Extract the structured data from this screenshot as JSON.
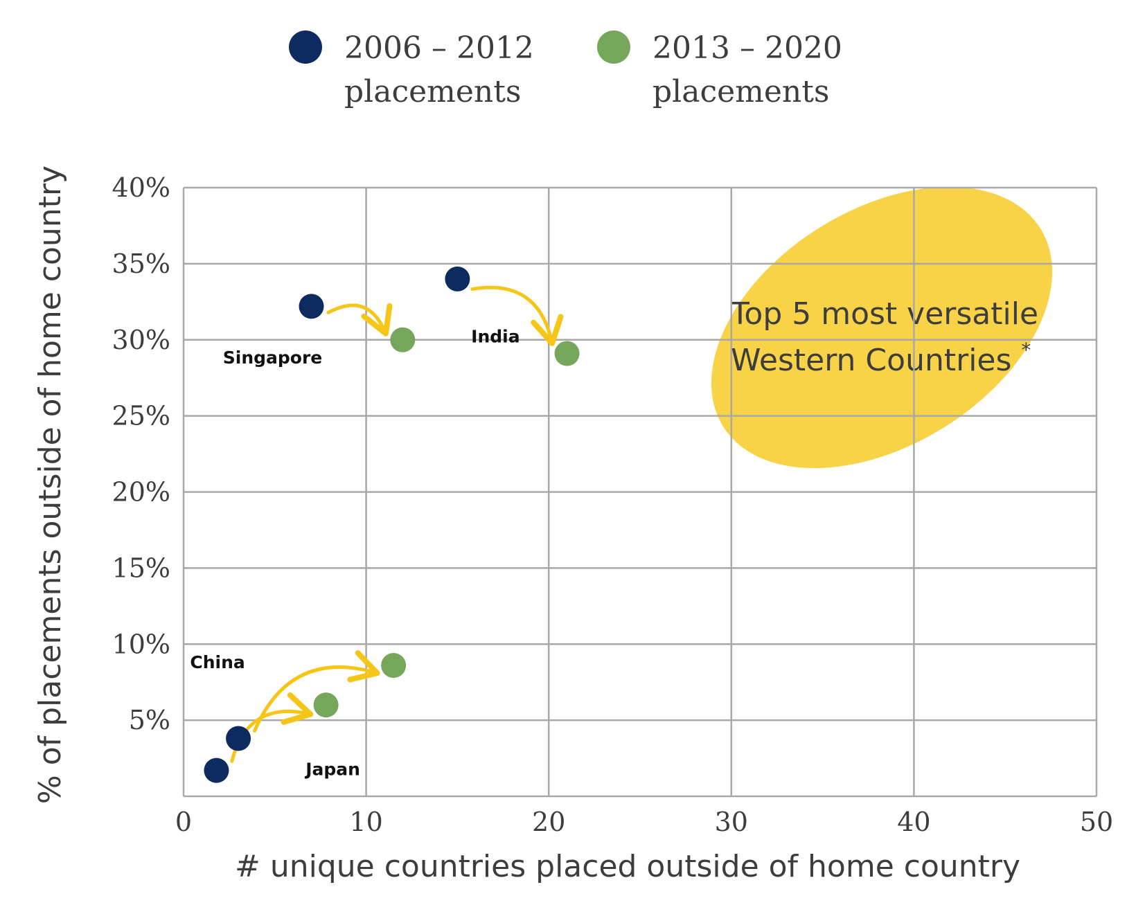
{
  "chart_data": {
    "type": "scatter",
    "xlabel": "# unique countries placed outside of home country",
    "ylabel": "% of placements outside of home country",
    "xlim": [
      0,
      50
    ],
    "ylim": [
      0,
      40
    ],
    "x_ticks": [
      "0",
      "10",
      "20",
      "30",
      "40",
      "50"
    ],
    "y_ticks": [
      "5%",
      "10%",
      "15%",
      "20%",
      "25%",
      "30%",
      "35%",
      "40%"
    ],
    "grid": true,
    "legend_position": "top",
    "series": [
      {
        "name_line1": "2006 – 2012",
        "name_line2": "placements",
        "color": "#0d2b5e",
        "points": [
          {
            "country": "Singapore",
            "x": 7,
            "y": 32.2
          },
          {
            "country": "India",
            "x": 15,
            "y": 34
          },
          {
            "country": "China",
            "x": 3,
            "y": 3.8
          },
          {
            "country": "Japan",
            "x": 1.8,
            "y": 1.7
          }
        ]
      },
      {
        "name_line1": "2013 – 2020",
        "name_line2": "placements",
        "color": "#75a659",
        "points": [
          {
            "country": "Singapore",
            "x": 12,
            "y": 30
          },
          {
            "country": "India",
            "x": 21,
            "y": 29.1
          },
          {
            "country": "China",
            "x": 11.5,
            "y": 8.6
          },
          {
            "country": "Japan",
            "x": 7.8,
            "y": 6
          }
        ]
      }
    ],
    "arrow_color": "#f5c518",
    "annotation": {
      "line1": "Top 5 most versatile",
      "line2": "Western Countries",
      "marker": "*",
      "highlight_color": "#f8d247"
    }
  }
}
